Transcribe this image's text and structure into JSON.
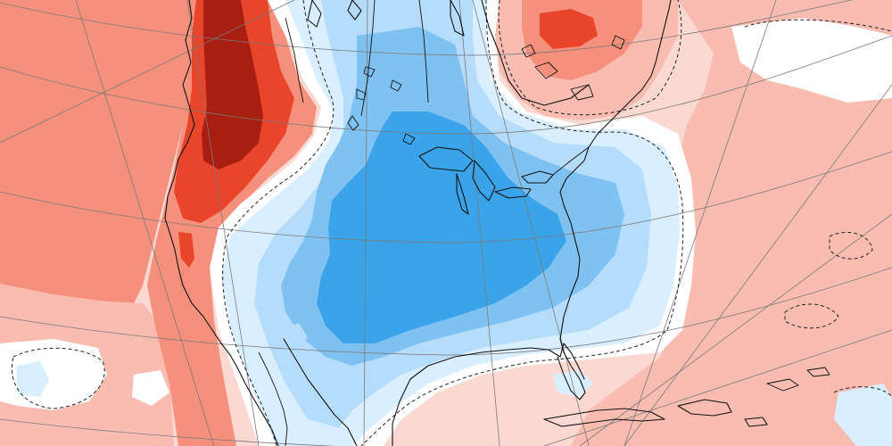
{
  "map": {
    "projection": "polar-stereographic-north-america",
    "field": "anomaly",
    "palette": {
      "warm_extreme": "#a81e10",
      "warm_strong": "#e8452a",
      "warm_moderate": "#f4907c",
      "warm_light": "#f8bcb0",
      "warm_faint": "#fbd9d2",
      "neutral": "#ffffff",
      "cool_faint": "#d9efff",
      "cool_light": "#b5ddfb",
      "cool_moderate": "#7fc2f2",
      "cool_strong": "#3aa3ea",
      "coastline": "#111111",
      "graticule": "#7a7a7a",
      "zero_contour": "#222222"
    },
    "zero_contour_style": "dashed"
  }
}
